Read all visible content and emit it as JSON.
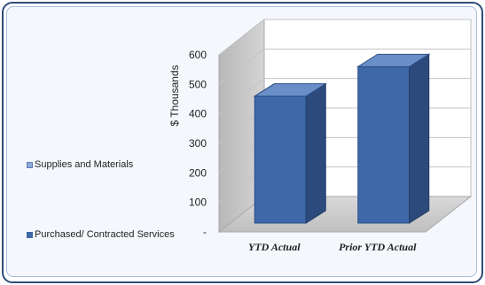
{
  "chart_data": {
    "type": "bar",
    "ylabel": "$ Thousands",
    "ylim": [
      0,
      600
    ],
    "yticks": [
      "-",
      "100",
      "200",
      "300",
      "400",
      "500",
      "600"
    ],
    "categories": [
      "YTD Actual",
      "Prior YTD Actual"
    ],
    "series": [
      {
        "name": "Supplies and Materials",
        "values": [
          0,
          0
        ],
        "color": "#8eaad8"
      },
      {
        "name": "Purchased/ Contracted Services",
        "values": [
          430,
          530
        ],
        "color": "#3e68a8"
      }
    ],
    "legend_position": "left",
    "grid": true
  }
}
